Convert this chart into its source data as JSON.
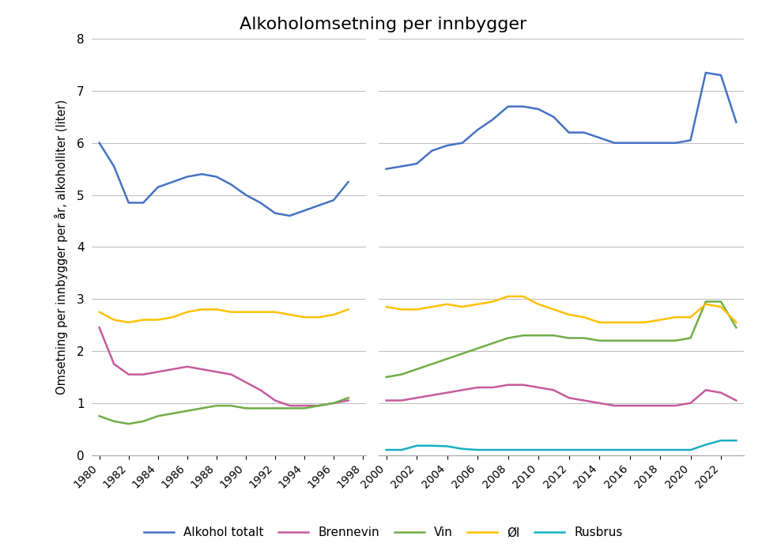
{
  "title": "Alkoholomsetning per innbygger",
  "ylabel": "Omsetning per innbygger per år, alkoholliter (liter)",
  "ylim": [
    0,
    8
  ],
  "yticks": [
    0,
    1,
    2,
    3,
    4,
    5,
    6,
    7,
    8
  ],
  "series": {
    "Alkohol totalt": {
      "color": "#4472C4",
      "years": [
        1980,
        1981,
        1982,
        1983,
        1984,
        1985,
        1986,
        1987,
        1988,
        1989,
        1990,
        1991,
        1992,
        1993,
        1994,
        1995,
        1996,
        1997,
        2000,
        2001,
        2002,
        2003,
        2004,
        2005,
        2006,
        2007,
        2008,
        2009,
        2010,
        2011,
        2012,
        2013,
        2014,
        2015,
        2016,
        2017,
        2018,
        2019,
        2020,
        2021,
        2022,
        2023
      ],
      "values": [
        6.0,
        5.55,
        4.85,
        4.85,
        5.15,
        5.25,
        5.35,
        5.4,
        5.35,
        5.2,
        5.0,
        4.85,
        4.65,
        4.6,
        4.7,
        4.8,
        4.9,
        5.25,
        5.5,
        5.55,
        5.6,
        5.85,
        5.95,
        6.0,
        6.25,
        6.45,
        6.7,
        6.7,
        6.65,
        6.5,
        6.2,
        6.2,
        6.1,
        6.0,
        6.0,
        6.0,
        6.0,
        6.0,
        6.05,
        7.35,
        7.3,
        6.4
      ]
    },
    "Brennevin": {
      "color": "#C55A9D",
      "years": [
        1980,
        1981,
        1982,
        1983,
        1984,
        1985,
        1986,
        1987,
        1988,
        1989,
        1990,
        1991,
        1992,
        1993,
        1994,
        1995,
        1996,
        1997,
        2000,
        2001,
        2002,
        2003,
        2004,
        2005,
        2006,
        2007,
        2008,
        2009,
        2010,
        2011,
        2012,
        2013,
        2014,
        2015,
        2016,
        2017,
        2018,
        2019,
        2020,
        2021,
        2022,
        2023
      ],
      "values": [
        2.45,
        1.75,
        1.55,
        1.55,
        1.6,
        1.65,
        1.7,
        1.65,
        1.6,
        1.55,
        1.4,
        1.25,
        1.05,
        0.95,
        0.95,
        0.95,
        1.0,
        1.05,
        1.05,
        1.05,
        1.1,
        1.15,
        1.2,
        1.25,
        1.3,
        1.3,
        1.35,
        1.35,
        1.3,
        1.25,
        1.1,
        1.05,
        1.0,
        0.95,
        0.95,
        0.95,
        0.95,
        0.95,
        1.0,
        1.25,
        1.2,
        1.05
      ]
    },
    "Vin": {
      "color": "#70AD47",
      "years": [
        1980,
        1981,
        1982,
        1983,
        1984,
        1985,
        1986,
        1987,
        1988,
        1989,
        1990,
        1991,
        1992,
        1993,
        1994,
        1995,
        1996,
        1997,
        2000,
        2001,
        2002,
        2003,
        2004,
        2005,
        2006,
        2007,
        2008,
        2009,
        2010,
        2011,
        2012,
        2013,
        2014,
        2015,
        2016,
        2017,
        2018,
        2019,
        2020,
        2021,
        2022,
        2023
      ],
      "values": [
        0.75,
        0.65,
        0.6,
        0.65,
        0.75,
        0.8,
        0.85,
        0.9,
        0.95,
        0.95,
        0.9,
        0.9,
        0.9,
        0.9,
        0.9,
        0.95,
        1.0,
        1.1,
        1.5,
        1.55,
        1.65,
        1.75,
        1.85,
        1.95,
        2.05,
        2.15,
        2.25,
        2.3,
        2.3,
        2.3,
        2.25,
        2.25,
        2.2,
        2.2,
        2.2,
        2.2,
        2.2,
        2.2,
        2.25,
        2.95,
        2.95,
        2.45
      ]
    },
    "Øl": {
      "color": "#FFC000",
      "years": [
        1980,
        1981,
        1982,
        1983,
        1984,
        1985,
        1986,
        1987,
        1988,
        1989,
        1990,
        1991,
        1992,
        1993,
        1994,
        1995,
        1996,
        1997,
        2000,
        2001,
        2002,
        2003,
        2004,
        2005,
        2006,
        2007,
        2008,
        2009,
        2010,
        2011,
        2012,
        2013,
        2014,
        2015,
        2016,
        2017,
        2018,
        2019,
        2020,
        2021,
        2022,
        2023
      ],
      "values": [
        2.75,
        2.6,
        2.55,
        2.6,
        2.6,
        2.65,
        2.75,
        2.8,
        2.8,
        2.75,
        2.75,
        2.75,
        2.75,
        2.7,
        2.65,
        2.65,
        2.7,
        2.8,
        2.85,
        2.8,
        2.8,
        2.85,
        2.9,
        2.85,
        2.9,
        2.95,
        3.05,
        3.05,
        2.9,
        2.8,
        2.7,
        2.65,
        2.55,
        2.55,
        2.55,
        2.55,
        2.6,
        2.65,
        2.65,
        2.9,
        2.85,
        2.55
      ]
    },
    "Rusbrus": {
      "color": "#17B0C1",
      "years": [
        1997,
        2000,
        2001,
        2002,
        2003,
        2004,
        2005,
        2006,
        2007,
        2008,
        2009,
        2010,
        2011,
        2012,
        2013,
        2014,
        2015,
        2016,
        2017,
        2018,
        2019,
        2020,
        2021,
        2022,
        2023
      ],
      "values": [
        0.05,
        0.1,
        0.1,
        0.18,
        0.18,
        0.17,
        0.12,
        0.1,
        0.1,
        0.1,
        0.1,
        0.1,
        0.1,
        0.1,
        0.1,
        0.1,
        0.1,
        0.1,
        0.1,
        0.1,
        0.1,
        0.1,
        0.2,
        0.28,
        0.28
      ]
    }
  },
  "legend_order": [
    "Alkohol totalt",
    "Brennevin",
    "Vin",
    "Øl",
    "Rusbrus"
  ],
  "xtick_labels_seg1": [
    1980,
    1982,
    1984,
    1986,
    1988,
    1990,
    1992,
    1994,
    1996,
    1998
  ],
  "xtick_labels_seg2": [
    2000,
    2002,
    2004,
    2006,
    2008,
    2010,
    2012,
    2014,
    2016,
    2018,
    2020,
    2022
  ]
}
